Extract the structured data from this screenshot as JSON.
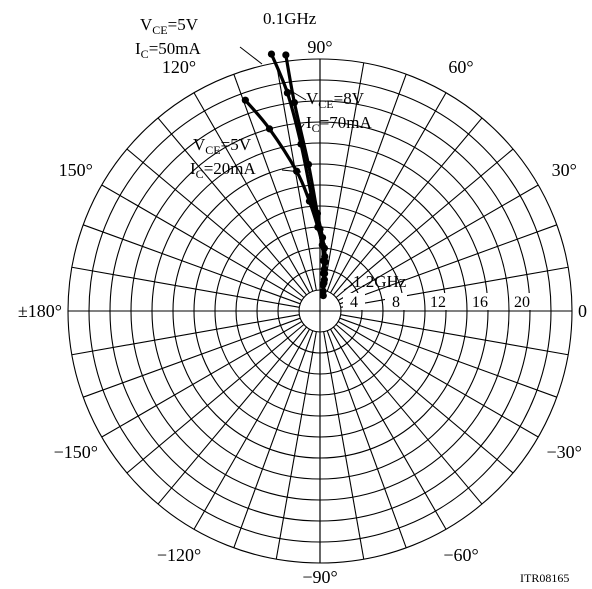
{
  "chart_data": {
    "type": "polar-line",
    "radial_ticks": [
      4,
      8,
      12,
      16,
      20
    ],
    "r_max": 24,
    "angle_labels": [
      {
        "deg": 0,
        "text": "0"
      },
      {
        "deg": 30,
        "text": "30°"
      },
      {
        "deg": 60,
        "text": "60°"
      },
      {
        "deg": 90,
        "text": "90°"
      },
      {
        "deg": 120,
        "text": "120°"
      },
      {
        "deg": 150,
        "text": "150°"
      },
      {
        "deg": 180,
        "text": "±180°"
      },
      {
        "deg": -150,
        "text": "−150°"
      },
      {
        "deg": -120,
        "text": "−120°"
      },
      {
        "deg": -90,
        "text": "−90°"
      },
      {
        "deg": -60,
        "text": "−60°"
      },
      {
        "deg": -30,
        "text": "−30°"
      }
    ],
    "series": [
      {
        "label_line1": "VCE=5V",
        "label_sub1": "CE",
        "label_pre1": "V",
        "label_post1": "=5V",
        "label_line2": "IC=50mA",
        "label_sub2": "C",
        "label_pre2": "I",
        "label_post2": "=50mA",
        "points": [
          {
            "mag": 24.9,
            "ang": 100.7
          },
          {
            "mag": 21.0,
            "ang": 98.5
          },
          {
            "mag": 16.0,
            "ang": 96.5
          },
          {
            "mag": 11.0,
            "ang": 94.2
          },
          {
            "mag": 7.8,
            "ang": 90.0
          },
          {
            "mag": 6.0,
            "ang": 86.0
          },
          {
            "mag": 4.7,
            "ang": 84.0
          },
          {
            "mag": 3.6,
            "ang": 83.0
          },
          {
            "mag": 2.7,
            "ang": 82.0
          },
          {
            "mag": 1.5,
            "ang": 78.0
          }
        ]
      },
      {
        "label_line1": "VCE=8V",
        "label_sub1": "CE",
        "label_pre1": "V",
        "label_post1": "=8V",
        "label_line2": "IC=70mA",
        "label_sub2": "C",
        "label_pre2": "I",
        "label_post2": "=70mA",
        "points": [
          {
            "mag": 24.6,
            "ang": 97.6
          },
          {
            "mag": 20.0,
            "ang": 97.0
          },
          {
            "mag": 14.0,
            "ang": 94.5
          },
          {
            "mag": 9.3,
            "ang": 91.5
          },
          {
            "mag": 7.0,
            "ang": 88.0
          },
          {
            "mag": 5.2,
            "ang": 85.0
          },
          {
            "mag": 4.0,
            "ang": 84.0
          },
          {
            "mag": 3.0,
            "ang": 82.0
          },
          {
            "mag": 1.9,
            "ang": 81.0
          }
        ]
      },
      {
        "label_line1": "VCE=5V",
        "label_sub1": "CE",
        "label_pre1": "V",
        "label_post1": "=5V",
        "label_line2": "IC=20mA",
        "label_sub2": "C",
        "label_pre2": "I",
        "label_post2": "=20mA",
        "points": [
          {
            "mag": 21.3,
            "ang": 109.5
          },
          {
            "mag": 18.0,
            "ang": 105.5
          },
          {
            "mag": 13.5,
            "ang": 99.5
          },
          {
            "mag": 10.5,
            "ang": 95.5
          },
          {
            "mag": 8.0,
            "ang": 91.5
          },
          {
            "mag": 6.3,
            "ang": 88.0
          },
          {
            "mag": 4.8,
            "ang": 86.0
          },
          {
            "mag": 3.6,
            "ang": 84.5
          },
          {
            "mag": 2.5,
            "ang": 83.5
          }
        ]
      }
    ],
    "freq_labels": {
      "start": "0.1GHz",
      "end": "1.2GHz"
    },
    "grid": true
  },
  "figure_id": "ITR08165"
}
